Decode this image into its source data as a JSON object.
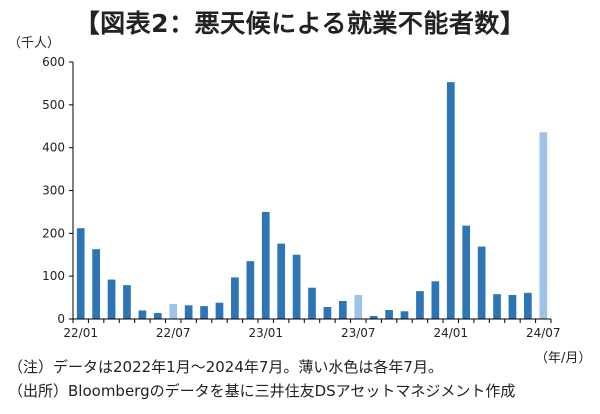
{
  "title": "【図表2：悪天候による就業不能者数】",
  "y_unit_label": "（千人）",
  "x_unit_label": "（年/月）",
  "notes": {
    "note1": "（注）データは2022年1月～2024年7月。薄い水色は各年7月。",
    "note2": "（出所）Bloombergのデータを基に三井住友DSアセットマネジメント作成"
  },
  "colors": {
    "bar": "#2e75b6",
    "bar_july": "#9dc3e6",
    "axis": "#000000"
  },
  "chart_data": {
    "type": "bar",
    "title": "【図表2：悪天候による就業不能者数】",
    "ylabel": "（千人）",
    "xlabel": "（年/月）",
    "ylim": [
      0,
      600
    ],
    "yticks": [
      0,
      100,
      200,
      300,
      400,
      500,
      600
    ],
    "grid": false,
    "xtick_labels": [
      {
        "label": "22/01",
        "index": 0
      },
      {
        "label": "22/07",
        "index": 6
      },
      {
        "label": "23/01",
        "index": 12
      },
      {
        "label": "23/07",
        "index": 18
      },
      {
        "label": "24/01",
        "index": 24
      },
      {
        "label": "24/07",
        "index": 30
      }
    ],
    "categories": [
      "22/01",
      "22/02",
      "22/03",
      "22/04",
      "22/05",
      "22/06",
      "22/07",
      "22/08",
      "22/09",
      "22/10",
      "22/11",
      "22/12",
      "23/01",
      "23/02",
      "23/03",
      "23/04",
      "23/05",
      "23/06",
      "23/07",
      "23/08",
      "23/09",
      "23/10",
      "23/11",
      "23/12",
      "24/01",
      "24/02",
      "24/03",
      "24/04",
      "24/05",
      "24/06",
      "24/07"
    ],
    "values": [
      212,
      163,
      92,
      79,
      20,
      14,
      35,
      32,
      30,
      38,
      97,
      135,
      250,
      176,
      150,
      73,
      28,
      42,
      56,
      7,
      21,
      18,
      65,
      88,
      553,
      218,
      169,
      58,
      56,
      61,
      436
    ],
    "highlight_indices": [
      6,
      18,
      30
    ]
  }
}
